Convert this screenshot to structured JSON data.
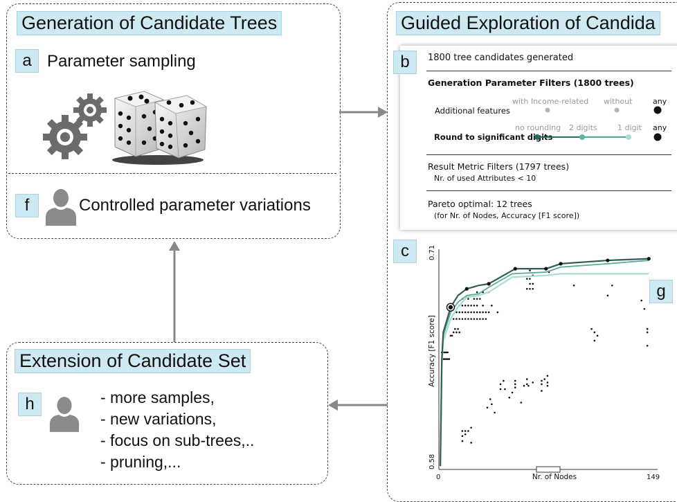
{
  "generation": {
    "title": "Generation of Candidate Trees",
    "a_tag": "a",
    "a_label": "Parameter sampling",
    "f_tag": "f",
    "f_label": "Controlled parameter variations"
  },
  "guided": {
    "title": "Guided Exploration of Candida",
    "b_tag": "b",
    "c_tag": "c",
    "g_tag": "g"
  },
  "filters": {
    "header": "1800 tree candidates generated",
    "gen_title": "Generation Parameter Filters (1800 trees)",
    "additional_features": {
      "label": "Additional features",
      "options": [
        "with Income-related",
        "without",
        "any"
      ]
    },
    "round_digits": {
      "label": "Round to significant digits",
      "options": [
        "no rounding",
        "2 digits",
        "1 digit",
        "any"
      ]
    },
    "result_title": "Result Metric Filters (1797 trees)",
    "result_rule": "Nr. of used Attributes < 10",
    "pareto_title": "Pareto optimal: 12 trees",
    "pareto_sub": "(for Nr. of Nodes, Accuracy [F1 score])"
  },
  "extension": {
    "title": "Extension of Candidate Set",
    "h_tag": "h",
    "items": [
      "- more samples,",
      "- new variations,",
      "- focus on sub-trees,..",
      "- pruning,..."
    ]
  },
  "chart_data": {
    "type": "scatter",
    "xlabel": "Nr. of Nodes",
    "ylabel": "Accuracy [F1 score]",
    "xlim": [
      0,
      149
    ],
    "ylim": [
      0.58,
      0.71
    ],
    "x_tick_labels": [
      "0",
      "149"
    ],
    "y_tick_labels": [
      "0.58",
      "0.71"
    ],
    "series": [
      {
        "values": [
          [
            1,
            0.582
          ],
          [
            2,
            0.646
          ],
          [
            3,
            0.662
          ],
          [
            8,
            0.677
          ],
          [
            13,
            0.684
          ],
          [
            19,
            0.688
          ],
          [
            27,
            0.69
          ],
          [
            34,
            0.691
          ],
          [
            52,
            0.7
          ],
          [
            73,
            0.7
          ],
          [
            83,
            0.703
          ],
          [
            115,
            0.705
          ],
          [
            143,
            0.706
          ]
        ]
      },
      {
        "values": [
          [
            1,
            0.582
          ],
          [
            2,
            0.644
          ],
          [
            3,
            0.66
          ],
          [
            8,
            0.674
          ],
          [
            13,
            0.68
          ],
          [
            19,
            0.684
          ],
          [
            27,
            0.685
          ],
          [
            34,
            0.689
          ],
          [
            50,
            0.697
          ],
          [
            73,
            0.698
          ],
          [
            83,
            0.701
          ],
          [
            115,
            0.703
          ],
          [
            143,
            0.705
          ]
        ]
      },
      {
        "values": [
          [
            1,
            0.582
          ],
          [
            2,
            0.642
          ],
          [
            3,
            0.657
          ],
          [
            8,
            0.67
          ],
          [
            13,
            0.677
          ],
          [
            19,
            0.683
          ],
          [
            27,
            0.684
          ],
          [
            34,
            0.686
          ],
          [
            50,
            0.695
          ],
          [
            73,
            0.696
          ],
          [
            83,
            0.697
          ],
          [
            115,
            0.697
          ],
          [
            143,
            0.697
          ]
        ]
      }
    ],
    "pareto_points": [
      [
        8,
        0.677
      ],
      [
        19,
        0.688
      ],
      [
        34,
        0.691
      ],
      [
        52,
        0.7
      ],
      [
        73,
        0.7
      ],
      [
        83,
        0.703
      ],
      [
        115,
        0.705
      ],
      [
        143,
        0.706
      ]
    ],
    "highlight_point": [
      8,
      0.677
    ],
    "points": [
      [
        2,
        0.65
      ],
      [
        3,
        0.65
      ],
      [
        4,
        0.65
      ],
      [
        5,
        0.65
      ],
      [
        6,
        0.65
      ],
      [
        3,
        0.646
      ],
      [
        4,
        0.646
      ],
      [
        5,
        0.646
      ],
      [
        6,
        0.646
      ],
      [
        7,
        0.646
      ],
      [
        8,
        0.66
      ],
      [
        9,
        0.66
      ],
      [
        10,
        0.662
      ],
      [
        11,
        0.664
      ],
      [
        12,
        0.662
      ],
      [
        13,
        0.664
      ],
      [
        14,
        0.662
      ],
      [
        10,
        0.67
      ],
      [
        12,
        0.67
      ],
      [
        14,
        0.67
      ],
      [
        16,
        0.67
      ],
      [
        18,
        0.67
      ],
      [
        20,
        0.67
      ],
      [
        22,
        0.67
      ],
      [
        24,
        0.67
      ],
      [
        26,
        0.67
      ],
      [
        28,
        0.67
      ],
      [
        30,
        0.67
      ],
      [
        32,
        0.67
      ],
      [
        12,
        0.674
      ],
      [
        14,
        0.674
      ],
      [
        16,
        0.674
      ],
      [
        18,
        0.674
      ],
      [
        20,
        0.674
      ],
      [
        22,
        0.674
      ],
      [
        24,
        0.674
      ],
      [
        26,
        0.674
      ],
      [
        28,
        0.674
      ],
      [
        30,
        0.674
      ],
      [
        32,
        0.674
      ],
      [
        34,
        0.674
      ],
      [
        40,
        0.674
      ],
      [
        14,
        0.678
      ],
      [
        16,
        0.678
      ],
      [
        18,
        0.678
      ],
      [
        20,
        0.678
      ],
      [
        22,
        0.678
      ],
      [
        24,
        0.678
      ],
      [
        26,
        0.678
      ],
      [
        30,
        0.678
      ],
      [
        36,
        0.678
      ],
      [
        16,
        0.682
      ],
      [
        20,
        0.682
      ],
      [
        24,
        0.682
      ],
      [
        26,
        0.682
      ],
      [
        28,
        0.682
      ],
      [
        26,
        0.686
      ],
      [
        30,
        0.686
      ],
      [
        34,
        0.686
      ],
      [
        60,
        0.688
      ],
      [
        62,
        0.688
      ],
      [
        64,
        0.688
      ],
      [
        62,
        0.691
      ],
      [
        64,
        0.691
      ],
      [
        60,
        0.694
      ],
      [
        62,
        0.694
      ],
      [
        64,
        0.696
      ],
      [
        62,
        0.699
      ],
      [
        75,
        0.698
      ],
      [
        92,
        0.69
      ],
      [
        115,
        0.684
      ],
      [
        140,
        0.676
      ],
      [
        138,
        0.681
      ],
      [
        118,
        0.69
      ],
      [
        104,
        0.664
      ],
      [
        106,
        0.662
      ],
      [
        108,
        0.66
      ],
      [
        106,
        0.657
      ],
      [
        142,
        0.664
      ],
      [
        142,
        0.662
      ],
      [
        142,
        0.654
      ],
      [
        16,
        0.603
      ],
      [
        18,
        0.603
      ],
      [
        20,
        0.603
      ],
      [
        16,
        0.6
      ],
      [
        18,
        0.601
      ],
      [
        22,
        0.605
      ],
      [
        22,
        0.596
      ],
      [
        16,
        0.597
      ],
      [
        33,
        0.617
      ],
      [
        35,
        0.622
      ],
      [
        36,
        0.619
      ],
      [
        38,
        0.614
      ],
      [
        42,
        0.628
      ],
      [
        42,
        0.631
      ],
      [
        44,
        0.633
      ],
      [
        45,
        0.628
      ],
      [
        48,
        0.623
      ],
      [
        50,
        0.626
      ],
      [
        52,
        0.633
      ],
      [
        52,
        0.631
      ],
      [
        52,
        0.629
      ],
      [
        60,
        0.631
      ],
      [
        60,
        0.634
      ],
      [
        61,
        0.63
      ],
      [
        64,
        0.632
      ],
      [
        70,
        0.633
      ],
      [
        70,
        0.631
      ],
      [
        72,
        0.634
      ],
      [
        74,
        0.63
      ],
      [
        74,
        0.636
      ],
      [
        74,
        0.632
      ],
      [
        70,
        0.627
      ],
      [
        58,
        0.63
      ],
      [
        56,
        0.62
      ]
    ]
  }
}
